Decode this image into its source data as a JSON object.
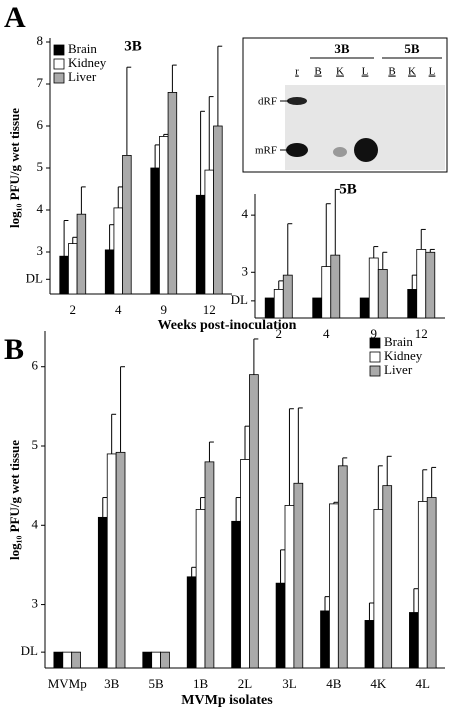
{
  "panels": [
    "A",
    "B"
  ],
  "gel": {
    "groups": [
      "3B",
      "5B"
    ],
    "lanes": [
      "r",
      "B",
      "K",
      "L",
      "B",
      "K",
      "L"
    ],
    "bands": [
      "dRF",
      "mRF"
    ]
  },
  "chart_data": [
    {
      "type": "bar",
      "title": "3B",
      "y_label": "log₁₀ PFU/g wet tissue",
      "x_label": "Weeks post-inoculation",
      "categories": [
        "2",
        "4",
        "9",
        "12"
      ],
      "legend": "upper left",
      "series": [
        {
          "name": "Brain",
          "color": "#000000",
          "values": [
            2.9,
            3.05,
            5.0,
            4.35
          ],
          "errors": [
            0.85,
            0.6,
            0.55,
            2.0
          ]
        },
        {
          "name": "Kidney",
          "color": "#ffffff",
          "values": [
            3.2,
            4.05,
            5.75,
            4.95
          ],
          "errors": [
            0.15,
            0.5,
            0.05,
            1.75
          ]
        },
        {
          "name": "Liver",
          "color": "#aaaaaa",
          "values": [
            3.9,
            5.3,
            6.8,
            6.0
          ],
          "errors": [
            0.65,
            2.1,
            0.65,
            1.9
          ]
        }
      ],
      "ylim": [
        2,
        8
      ],
      "yticks": [
        {
          "value": 2.35,
          "label": "DL"
        },
        3,
        4,
        5,
        6,
        7,
        8
      ]
    },
    {
      "type": "bar",
      "title": "5B",
      "categories": [
        "2",
        "4",
        "9",
        "12"
      ],
      "series": [
        {
          "color": "#000000",
          "values": [
            2.55,
            2.55,
            2.55,
            2.7
          ],
          "errors": [
            null,
            null,
            null,
            0.25
          ]
        },
        {
          "color": "#ffffff",
          "values": [
            2.7,
            3.1,
            3.25,
            3.4
          ],
          "errors": [
            0.15,
            1.1,
            0.2,
            0.35
          ]
        },
        {
          "color": "#aaaaaa",
          "values": [
            2.95,
            3.3,
            3.05,
            3.35
          ],
          "errors": [
            0.9,
            1.15,
            0.3,
            0.05
          ]
        }
      ],
      "ylim": [
        2.2,
        4.3
      ],
      "yticks": [
        {
          "value": 2.5,
          "label": "DL"
        },
        3,
        4
      ]
    },
    {
      "type": "bar",
      "y_label": "log₁₀ PFU/g wet tissue",
      "x_label": "MVMp isolates",
      "categories": [
        "MVMp",
        "3B",
        "5B",
        "1B",
        "2L",
        "3L",
        "4B",
        "4K",
        "4L"
      ],
      "legend": "upper right",
      "series": [
        {
          "name": "Brain",
          "color": "#000000",
          "values": [
            2.4,
            4.1,
            2.4,
            3.35,
            4.05,
            3.27,
            2.92,
            2.8,
            2.9
          ],
          "errors": [
            null,
            0.25,
            null,
            0.12,
            0.3,
            0.42,
            0.18,
            0.22,
            0.3
          ]
        },
        {
          "name": "Kidney",
          "color": "#ffffff",
          "values": [
            2.4,
            4.9,
            2.4,
            4.2,
            4.83,
            4.25,
            4.27,
            4.2,
            4.3
          ],
          "errors": [
            null,
            0.5,
            null,
            0.15,
            0.42,
            1.22,
            0.02,
            0.55,
            0.4
          ]
        },
        {
          "name": "Liver",
          "color": "#aaaaaa",
          "values": [
            2.4,
            4.92,
            2.4,
            4.8,
            5.9,
            4.53,
            4.75,
            4.5,
            4.35
          ],
          "errors": [
            null,
            1.08,
            null,
            0.25,
            0.45,
            0.95,
            0.1,
            0.37,
            0.38
          ]
        }
      ],
      "ylim": [
        2.2,
        6.4
      ],
      "yticks": [
        {
          "value": 2.4,
          "label": "DL"
        },
        3,
        4,
        5,
        6
      ]
    }
  ]
}
